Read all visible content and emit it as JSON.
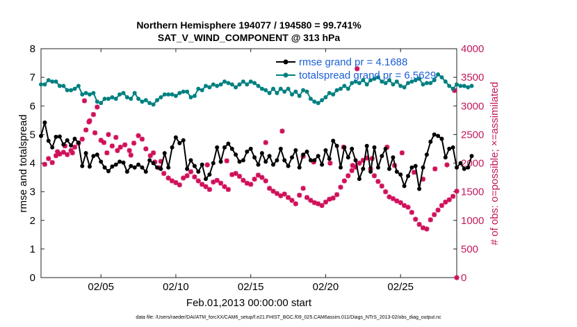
{
  "chart_data": {
    "type": "line",
    "title_line1": "Northern Hemisphere 194077 / 194580 = 99.741%",
    "title_line2": "SAT_V_WIND_COMPONENT @ 313 hPa",
    "xlabel": "Feb.01,2013 00:00:00 start",
    "ylabel_left": "rmse and totalspread",
    "ylabel_right": "# of obs: o=possible; ×=assimilated",
    "xlim": [
      1,
      28.75
    ],
    "ylim_left": [
      0,
      8
    ],
    "ylim_right": [
      0,
      4000
    ],
    "x_ticks": [
      {
        "x": 5,
        "label": "02/05"
      },
      {
        "x": 10,
        "label": "02/10"
      },
      {
        "x": 15,
        "label": "02/15"
      },
      {
        "x": 20,
        "label": "02/20"
      },
      {
        "x": 25,
        "label": "02/25"
      }
    ],
    "y_ticks_left": [
      "0",
      "1",
      "2",
      "3",
      "4",
      "5",
      "6",
      "7",
      "8"
    ],
    "y_ticks_right": [
      "0",
      "500",
      "1000",
      "1500",
      "2000",
      "2500",
      "3000",
      "3500",
      "4000"
    ],
    "legend": [
      {
        "name": "rmse",
        "label": "rmse grand pr = 4.1688",
        "color": "#000000"
      },
      {
        "name": "totalspread",
        "label": "totalspread grand pr = 6.5629",
        "color": "#008080"
      }
    ],
    "footer": "data file: /Users/raeder/DAI/ATM_forcXX/CAM6_setup/f.e21.FHIST_BGC.f09_025.CAM6assim.011/Diags_NTrS_2013-02/obs_diag_output.nc",
    "series": [
      {
        "name": "rmse",
        "axis": "left",
        "color": "#000000",
        "x_start": 1.0,
        "x_step": 0.25,
        "values": [
          4.95,
          5.42,
          4.78,
          4.55,
          4.92,
          4.93,
          4.65,
          4.8,
          4.62,
          4.85,
          4.72,
          3.9,
          4.35,
          3.88,
          4.25,
          4.3,
          4.05,
          3.85,
          3.72,
          3.88,
          3.95,
          4.05,
          4.02,
          3.7,
          3.9,
          3.85,
          3.95,
          3.85,
          3.7,
          4.1,
          4.0,
          3.85,
          3.8,
          4.35,
          3.85,
          4.55,
          4.9,
          4.7,
          4.8,
          3.8,
          4.1,
          3.9,
          3.7,
          3.95,
          3.45,
          3.6,
          4.0,
          4.55,
          4.05,
          4.55,
          4.68,
          4.5,
          4.3,
          4.05,
          4.1,
          4.4,
          4.5,
          4.2,
          3.95,
          4.35,
          4.05,
          4.25,
          3.95,
          4.1,
          4.5,
          4.1,
          3.9,
          4.2,
          4.45,
          3.85,
          4.3,
          4.4,
          4.1,
          4.1,
          4.25,
          3.95,
          4.45,
          4.15,
          4.78,
          4.6,
          3.85,
          4.55,
          4.2,
          4.5,
          4.1,
          3.45,
          3.8,
          4.6,
          3.7,
          4.55,
          3.85,
          4.25,
          4.5,
          3.8,
          4.2,
          3.7,
          3.6,
          3.2,
          3.55,
          3.85,
          3.9,
          3.1,
          3.85,
          4.3,
          4.75,
          5.0,
          4.95,
          4.85,
          4.2,
          4.5,
          4.55,
          3.85,
          4.0,
          3.8,
          3.85,
          4.25
        ]
      },
      {
        "name": "totalspread",
        "axis": "left",
        "color": "#008080",
        "x_start": 1.0,
        "x_step": 0.25,
        "values": [
          6.75,
          6.75,
          6.9,
          6.85,
          6.85,
          6.7,
          6.7,
          6.55,
          6.55,
          6.6,
          6.7,
          6.4,
          6.45,
          6.4,
          6.45,
          6.15,
          6.1,
          6.25,
          6.25,
          6.3,
          6.25,
          6.4,
          6.45,
          6.3,
          6.25,
          6.45,
          6.25,
          6.15,
          6.2,
          6.1,
          6.05,
          6.2,
          6.3,
          6.4,
          6.4,
          6.4,
          6.35,
          6.45,
          6.5,
          6.5,
          6.3,
          6.35,
          6.6,
          6.55,
          6.7,
          6.65,
          6.75,
          6.7,
          6.75,
          6.85,
          6.8,
          6.75,
          6.65,
          6.75,
          6.85,
          6.75,
          6.85,
          6.8,
          6.7,
          6.6,
          6.55,
          6.45,
          6.6,
          6.45,
          6.6,
          6.5,
          6.6,
          6.4,
          6.5,
          6.35,
          6.55,
          6.5,
          6.25,
          6.15,
          6.1,
          6.2,
          6.3,
          6.45,
          6.4,
          6.55,
          6.6,
          6.7,
          6.6,
          6.8,
          6.85,
          6.8,
          6.9,
          6.75,
          6.9,
          6.95,
          7.0,
          6.85,
          6.8,
          6.9,
          6.75,
          6.85,
          6.7,
          6.65,
          6.8,
          6.85,
          6.9,
          6.95,
          6.75,
          6.8,
          6.8,
          6.9,
          7.1,
          7.0,
          6.85,
          6.7,
          6.6,
          6.75,
          6.7,
          6.7,
          6.65,
          6.7
        ]
      }
    ],
    "scatter": {
      "name": "obs_assimilated",
      "axis": "right",
      "color": "#d0105a",
      "points": [
        [
          1.25,
          1980
        ],
        [
          1.5,
          2080
        ],
        [
          1.75,
          2010
        ],
        [
          2.0,
          2130
        ],
        [
          2.25,
          2160
        ],
        [
          2.5,
          2190
        ],
        [
          2.75,
          2150
        ],
        [
          3.0,
          2220
        ],
        [
          3.25,
          2280
        ],
        [
          3.5,
          2350
        ],
        [
          3.75,
          2420
        ],
        [
          4.0,
          2580
        ],
        [
          4.25,
          2740
        ],
        [
          4.5,
          2850
        ],
        [
          4.75,
          2980
        ],
        [
          3.9,
          3090
        ],
        [
          4.2,
          2720
        ],
        [
          4.6,
          2530
        ],
        [
          5.0,
          2400
        ],
        [
          5.2,
          2360
        ],
        [
          5.5,
          2500
        ],
        [
          5.75,
          2300
        ],
        [
          6.0,
          2450
        ],
        [
          6.3,
          2280
        ],
        [
          6.6,
          2320
        ],
        [
          6.9,
          2220
        ],
        [
          7.2,
          2350
        ],
        [
          7.5,
          2480
        ],
        [
          7.75,
          2420
        ],
        [
          8.0,
          2250
        ],
        [
          8.3,
          2130
        ],
        [
          8.6,
          2020
        ],
        [
          8.9,
          1920
        ],
        [
          9.2,
          1820
        ],
        [
          9.5,
          1740
        ],
        [
          9.75,
          1690
        ],
        [
          10.0,
          1660
        ],
        [
          10.25,
          1620
        ],
        [
          10.5,
          1740
        ],
        [
          10.75,
          1780
        ],
        [
          11.0,
          1850
        ],
        [
          11.25,
          1760
        ],
        [
          11.5,
          1690
        ],
        [
          11.75,
          1630
        ],
        [
          12.0,
          1590
        ],
        [
          12.25,
          1540
        ],
        [
          12.5,
          1670
        ],
        [
          12.75,
          1700
        ],
        [
          13.0,
          1650
        ],
        [
          13.25,
          1590
        ],
        [
          13.5,
          1540
        ],
        [
          13.75,
          1800
        ],
        [
          14.0,
          1820
        ],
        [
          14.25,
          1770
        ],
        [
          14.5,
          1700
        ],
        [
          14.75,
          1650
        ],
        [
          15.0,
          1630
        ],
        [
          15.25,
          1720
        ],
        [
          15.5,
          1790
        ],
        [
          15.75,
          1750
        ],
        [
          16.0,
          1690
        ],
        [
          16.25,
          1560
        ],
        [
          16.5,
          1510
        ],
        [
          16.75,
          1470
        ],
        [
          17.0,
          1430
        ],
        [
          17.25,
          1460
        ],
        [
          17.5,
          1400
        ],
        [
          17.75,
          1350
        ],
        [
          18.0,
          1290
        ],
        [
          18.25,
          1440
        ],
        [
          18.5,
          1560
        ],
        [
          18.75,
          1400
        ],
        [
          19.0,
          1350
        ],
        [
          19.25,
          1310
        ],
        [
          19.5,
          1290
        ],
        [
          19.75,
          1260
        ],
        [
          20.0,
          1320
        ],
        [
          20.25,
          1370
        ],
        [
          20.5,
          1390
        ],
        [
          20.75,
          1450
        ],
        [
          21.0,
          1580
        ],
        [
          21.25,
          1690
        ],
        [
          21.5,
          1780
        ],
        [
          21.75,
          1870
        ],
        [
          22.0,
          1930
        ],
        [
          22.25,
          2000
        ],
        [
          22.5,
          2050
        ],
        [
          22.75,
          2090
        ],
        [
          23.0,
          1900
        ],
        [
          23.25,
          1780
        ],
        [
          23.5,
          1680
        ],
        [
          23.75,
          1600
        ],
        [
          24.0,
          1500
        ],
        [
          24.25,
          1410
        ],
        [
          24.5,
          1380
        ],
        [
          24.75,
          1340
        ],
        [
          25.0,
          1310
        ],
        [
          25.25,
          1260
        ],
        [
          25.5,
          1230
        ],
        [
          25.75,
          1140
        ],
        [
          26.0,
          1020
        ],
        [
          26.25,
          930
        ],
        [
          26.5,
          870
        ],
        [
          26.75,
          850
        ],
        [
          27.0,
          1010
        ],
        [
          27.25,
          1100
        ],
        [
          27.5,
          1180
        ],
        [
          27.75,
          1260
        ],
        [
          28.0,
          1320
        ],
        [
          28.25,
          1360
        ],
        [
          28.5,
          1420
        ],
        [
          28.75,
          1510
        ],
        [
          2.1,
          2200
        ],
        [
          2.6,
          2300
        ],
        [
          3.1,
          2180
        ],
        [
          5.4,
          2180
        ],
        [
          6.1,
          2220
        ],
        [
          7.0,
          2140
        ],
        [
          8.5,
          2180
        ],
        [
          9.0,
          2030
        ],
        [
          12.1,
          1970
        ],
        [
          13.4,
          2040
        ],
        [
          16.0,
          2360
        ],
        [
          17.1,
          2560
        ],
        [
          18.5,
          2120
        ],
        [
          19.2,
          2020
        ],
        [
          20.3,
          2000
        ],
        [
          21.2,
          2280
        ],
        [
          21.8,
          1960
        ],
        [
          22.1,
          3650
        ],
        [
          23.1,
          2080
        ],
        [
          24.1,
          2280
        ],
        [
          24.6,
          1960
        ],
        [
          25.1,
          2180
        ],
        [
          25.9,
          1840
        ],
        [
          26.5,
          1720
        ],
        [
          27.3,
          1900
        ],
        [
          28.1,
          1970
        ],
        [
          28.6,
          3270
        ],
        [
          28.9,
          0
        ]
      ]
    }
  }
}
